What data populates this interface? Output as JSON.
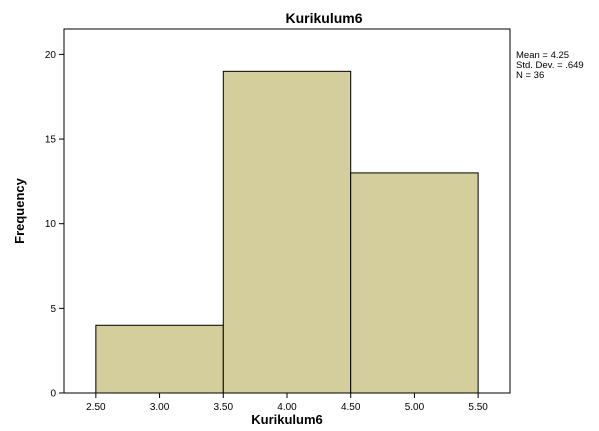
{
  "chart_data": {
    "type": "bar",
    "title": "Kurikulum6",
    "xlabel": "Kurikulum6",
    "ylabel": "Frequency",
    "bins": [
      {
        "from": 2.5,
        "to": 3.5,
        "frequency": 4
      },
      {
        "from": 3.5,
        "to": 4.5,
        "frequency": 19
      },
      {
        "from": 4.5,
        "to": 5.5,
        "frequency": 13
      }
    ],
    "xlim": [
      2.25,
      5.75
    ],
    "ylim": [
      0,
      21.5
    ],
    "x_ticks": [
      "2.50",
      "3.00",
      "3.50",
      "4.00",
      "4.50",
      "5.00",
      "5.50"
    ],
    "y_ticks": [
      "0",
      "5",
      "10",
      "15",
      "20"
    ],
    "bar_color": "#D3CE9C",
    "bar_edge_color": "#000000",
    "grid": false,
    "legend": "top-right",
    "stats": {
      "mean": "Mean = 4.25",
      "std": "Std. Dev. = .649",
      "n": "N = 36"
    }
  }
}
